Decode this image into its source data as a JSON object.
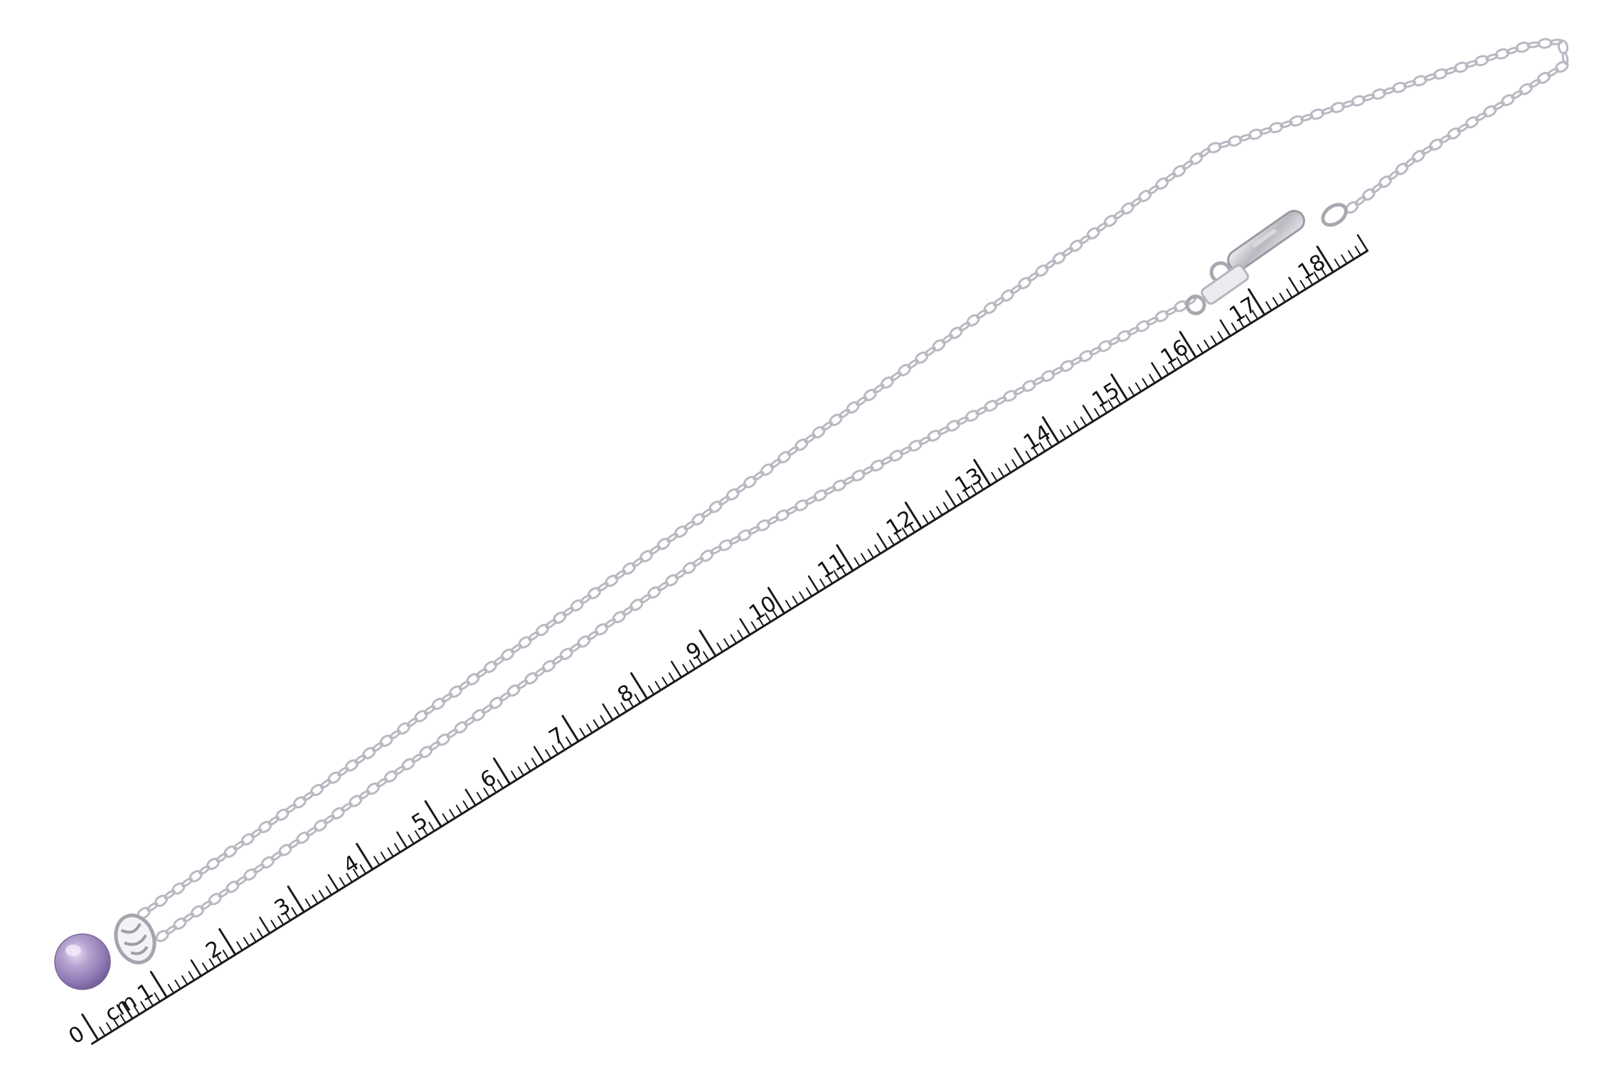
{
  "photo": {
    "subject": "pearl pendant necklace",
    "background_color": "#ffffff",
    "chain_color": "#b9b9c2",
    "pearl_color": "#a894c4"
  },
  "ruler": {
    "unit_label": "cm",
    "numbers": [
      "0",
      "1",
      "2",
      "3",
      "4",
      "5",
      "6",
      "7",
      "8",
      "9",
      "10",
      "11",
      "12",
      "13",
      "14",
      "15",
      "16",
      "17",
      "18"
    ]
  }
}
